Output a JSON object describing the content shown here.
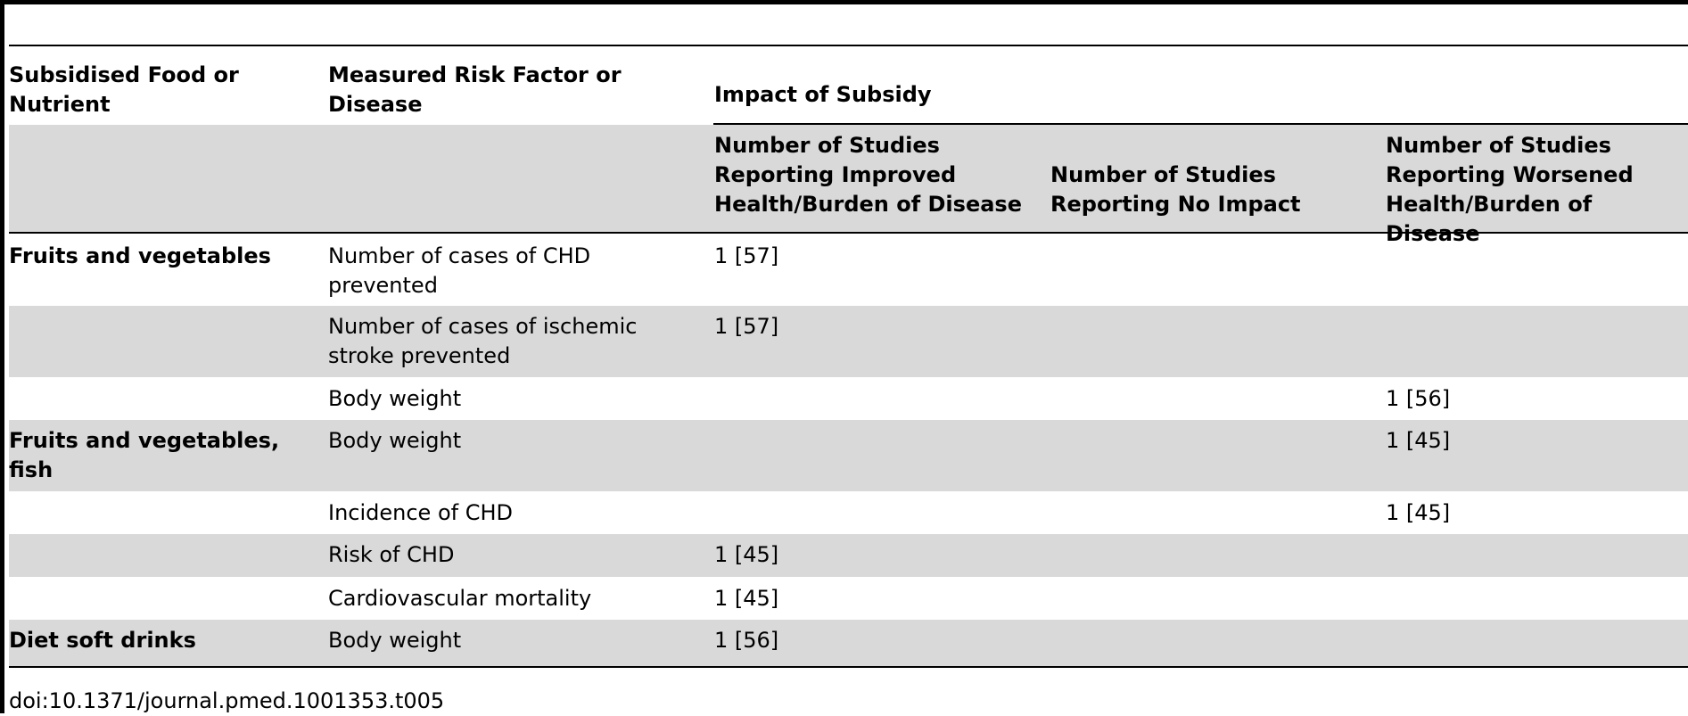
{
  "table": {
    "header": {
      "col_food": "Subsidised Food or\nNutrient",
      "col_risk": "Measured Risk Factor or\nDisease",
      "group": "Impact of Subsidy",
      "sub_improved": "Number of Studies\nReporting Improved\nHealth/Burden of Disease",
      "sub_none": "Number of Studies\nReporting No Impact",
      "sub_worsened": "Number of Studies\nReporting Worsened\nHealth/Burden of Disease"
    },
    "rows": [
      {
        "food": "Fruits and vegetables",
        "risk": "Number of cases of CHD\nprevented",
        "improved": "1 [57]",
        "none": "",
        "worsened": ""
      },
      {
        "food": "",
        "risk": "Number of cases of ischemic\nstroke prevented",
        "improved": "1 [57]",
        "none": "",
        "worsened": ""
      },
      {
        "food": "",
        "risk": "Body weight",
        "improved": "",
        "none": "",
        "worsened": "1 [56]"
      },
      {
        "food": "Fruits and vegetables,\nfish",
        "risk": "Body weight",
        "improved": "",
        "none": "",
        "worsened": "1 [45]"
      },
      {
        "food": "",
        "risk": "Incidence of CHD",
        "improved": "",
        "none": "",
        "worsened": "1 [45]"
      },
      {
        "food": "",
        "risk": "Risk of CHD",
        "improved": "1 [45]",
        "none": "",
        "worsened": ""
      },
      {
        "food": "",
        "risk": "Cardiovascular mortality",
        "improved": "1 [45]",
        "none": "",
        "worsened": ""
      },
      {
        "food": "Diet soft drinks",
        "risk": "Body weight",
        "improved": "1 [56]",
        "none": "",
        "worsened": ""
      }
    ]
  },
  "doi": "doi:10.1371/journal.pmed.1001353.t005"
}
